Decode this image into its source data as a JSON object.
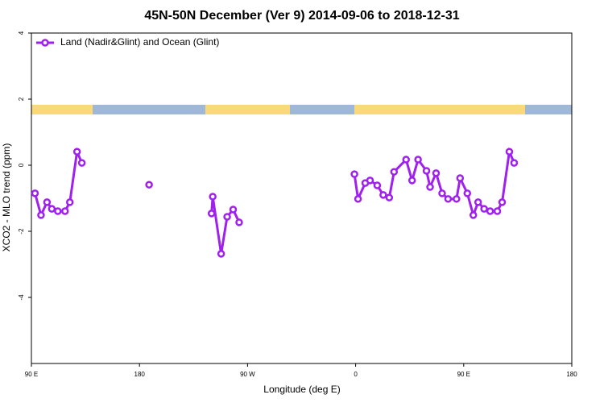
{
  "chart_data": {
    "type": "line",
    "title": "45N-50N December (Ver 9)   2014-09-06 to 2018-12-31",
    "x_label": "Longitude (deg E)",
    "y_label": "XCO2 - MLO trend (ppm)",
    "xlim": [
      90,
      540
    ],
    "xticks": [
      {
        "value": 90,
        "label": "90 E"
      },
      180,
      {
        "value": 270,
        "label": "90 W"
      },
      {
        "value": 360,
        "label": "0"
      },
      {
        "value": 450,
        "label": "90 E"
      },
      {
        "value": 540,
        "label": "180"
      }
    ],
    "ylim": [
      -6,
      4
    ],
    "yticks": [
      4,
      2,
      0,
      -2,
      -4
    ],
    "legend": "top-left",
    "series": [
      {
        "name": "Land (Nadir&Glint) and Ocean (Glint)",
        "color": "#a020f0",
        "x": [
          93,
          98,
          103,
          107,
          112,
          118,
          122,
          128,
          132,
          null,
          188,
          null,
          240,
          241,
          248,
          253,
          258,
          263,
          null,
          359,
          362,
          368,
          372,
          378,
          383,
          388,
          392,
          402,
          407,
          412,
          419,
          422,
          427,
          432,
          437,
          444,
          447,
          453,
          458,
          462,
          467,
          472,
          478,
          482,
          488,
          492
        ],
        "values": [
          -0.85,
          -1.51,
          -1.12,
          -1.32,
          -1.39,
          -1.39,
          -1.12,
          0.41,
          0.07,
          null,
          -0.59,
          null,
          -1.46,
          -0.95,
          -2.68,
          -1.56,
          -1.34,
          -1.73,
          null,
          -0.27,
          -1.02,
          -0.54,
          -0.46,
          -0.61,
          -0.9,
          -0.98,
          -0.2,
          0.17,
          -0.46,
          0.17,
          -0.17,
          -0.66,
          -0.24,
          -0.85,
          -1.02,
          -1.02,
          -0.39,
          -0.85,
          -1.51,
          -1.12,
          -1.32,
          -1.39,
          -1.39,
          -1.12,
          0.41,
          0.07
        ]
      }
    ]
  }
}
